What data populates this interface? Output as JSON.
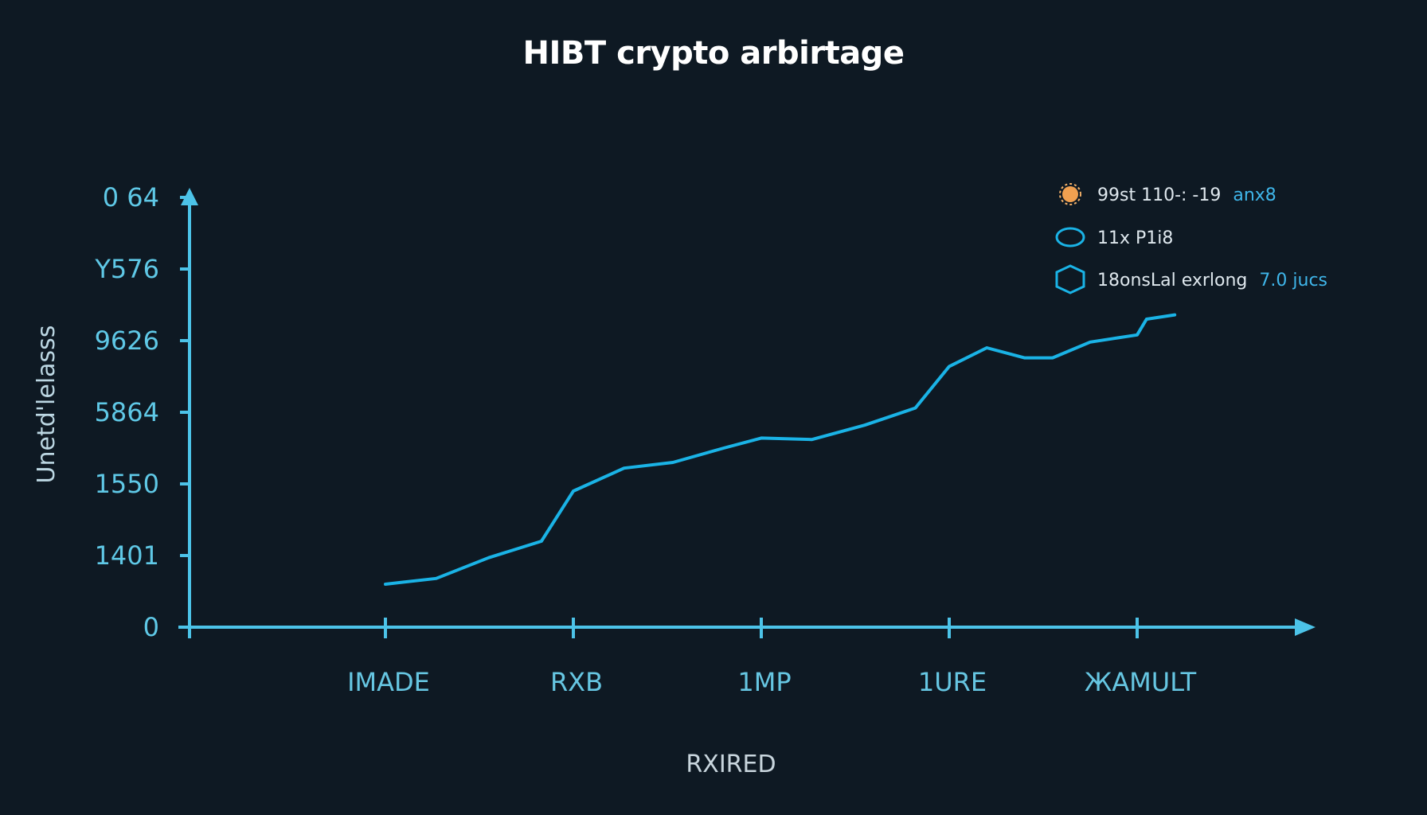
{
  "colors": {
    "background": "#0e1923",
    "axis": "#4cc3e8",
    "series_line": "#1ab3e6",
    "title": "#ffffff",
    "legend_marker_1": "#f0a050",
    "legend_marker_2": "#1ab3e6",
    "legend_marker_3": "#1ab3e6"
  },
  "legend": [
    {
      "marker": "sun-icon",
      "text": "99st 110-: -19",
      "accent": "anx8"
    },
    {
      "marker": "ellipse-icon",
      "text": "11x P1i8",
      "accent": ""
    },
    {
      "marker": "hexagon-icon",
      "text": "18onsLal exrlong",
      "accent": "7.0 jucs"
    }
  ],
  "chart_data": {
    "type": "line",
    "title": "HIBT crypto arbirtage",
    "xlabel": "RXIRED",
    "ylabel": "Unetd'lelasss",
    "categories": [
      "IMADE",
      "RXB",
      "1MP",
      "1URE",
      "ЖAMULT"
    ],
    "y_tick_labels": [
      "0",
      "1401",
      "1550",
      "5864",
      "9626",
      "Y576",
      "0 64"
    ],
    "grid": false,
    "legend_position": "top-right",
    "x_range": [
      0,
      4.3
    ],
    "y_range": [
      0,
      6.4
    ],
    "series": [
      {
        "x": [
          0,
          0.27,
          0.55,
          0.83,
          1.0,
          1.27,
          1.53,
          1.8,
          2.0,
          2.27,
          2.55,
          2.82,
          3.0,
          3.2,
          3.4,
          3.55,
          3.75,
          3.9,
          4.0,
          4.05,
          4.2
        ],
        "y": [
          0.6,
          0.68,
          0.97,
          1.2,
          1.9,
          2.22,
          2.3,
          2.5,
          2.64,
          2.62,
          2.82,
          3.06,
          3.64,
          3.9,
          3.76,
          3.76,
          3.98,
          4.04,
          4.08,
          4.3,
          4.36
        ]
      }
    ]
  }
}
